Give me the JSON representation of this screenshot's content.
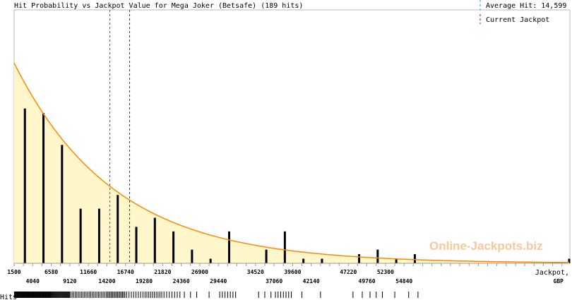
{
  "chart_data": {
    "type": "bar",
    "title": "Hit Probability vs Jackpot Value for Mega Joker (Betsafe) (189 hits)",
    "xlabel": "Jackpot,",
    "xunit": "GBP",
    "ylabel": "Hits",
    "xlim": [
      1500,
      78000
    ],
    "bin_width": 2540,
    "tick_labels_top": [
      "1500",
      "6580",
      "11660",
      "16740",
      "21820",
      "26900",
      "34520",
      "39600",
      "47220",
      "52300"
    ],
    "tick_labels_bottom": [
      "4040",
      "9120",
      "14200",
      "19280",
      "24360",
      "29440",
      "37060",
      "42140",
      "49760",
      "54840"
    ],
    "bins": [
      0,
      1,
      2,
      3,
      4,
      5,
      6,
      7,
      8,
      9,
      10,
      11,
      13,
      14,
      15,
      16,
      18,
      19,
      20,
      21,
      30
    ],
    "values": [
      34,
      33,
      26,
      12,
      12,
      15,
      8,
      10,
      7,
      3,
      1,
      7,
      3,
      7,
      1,
      1,
      2,
      3,
      1,
      2,
      1
    ],
    "curve": {
      "type": "exponential",
      "decay_gbp": 13700,
      "peak_hits_scale": 44
    },
    "average_hit": 14599,
    "current_jackpot": 17300,
    "legend": {
      "average": "Average Hit: 14,599",
      "current": "Current Jackpot"
    },
    "colors": {
      "bar": "#000000",
      "curve": "#ff8800",
      "fill": "#fff6cc",
      "average": "#3399cc",
      "current": "#cc0000"
    }
  },
  "watermark": "Online-Jackpots.biz"
}
